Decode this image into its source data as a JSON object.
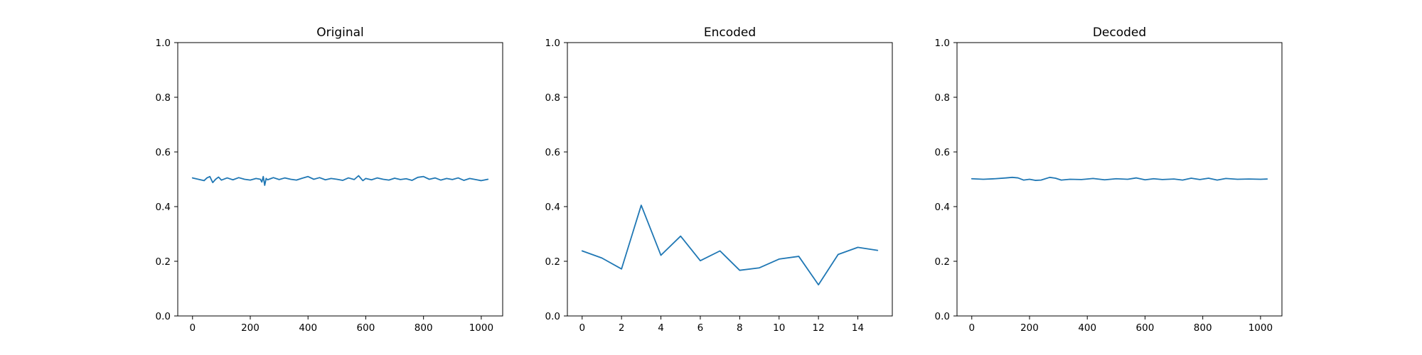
{
  "chart_data": [
    {
      "type": "line",
      "title": "Original",
      "xlabel": "",
      "ylabel": "",
      "xlim": [
        -51.15,
        1074.15
      ],
      "ylim": [
        0.0,
        1.0
      ],
      "xticks": [
        0,
        200,
        400,
        600,
        800,
        1000
      ],
      "yticks": [
        0.0,
        0.2,
        0.4,
        0.6,
        0.8,
        1.0
      ],
      "grid": false,
      "series": [
        {
          "color": "#1f77b4",
          "x": [
            0,
            20,
            40,
            50,
            60,
            70,
            80,
            90,
            100,
            120,
            140,
            160,
            180,
            200,
            220,
            235,
            240,
            245,
            250,
            255,
            260,
            280,
            300,
            320,
            340,
            360,
            380,
            400,
            420,
            440,
            460,
            480,
            500,
            520,
            540,
            560,
            575,
            590,
            600,
            620,
            640,
            660,
            680,
            700,
            720,
            740,
            760,
            780,
            800,
            820,
            840,
            860,
            880,
            900,
            920,
            940,
            960,
            980,
            1000,
            1023
          ],
          "y": [
            0.505,
            0.5,
            0.495,
            0.505,
            0.51,
            0.488,
            0.5,
            0.508,
            0.497,
            0.505,
            0.498,
            0.506,
            0.5,
            0.497,
            0.503,
            0.5,
            0.49,
            0.51,
            0.478,
            0.503,
            0.498,
            0.506,
            0.499,
            0.505,
            0.5,
            0.497,
            0.504,
            0.51,
            0.5,
            0.506,
            0.498,
            0.503,
            0.5,
            0.496,
            0.505,
            0.499,
            0.513,
            0.495,
            0.503,
            0.498,
            0.505,
            0.5,
            0.497,
            0.504,
            0.499,
            0.502,
            0.496,
            0.507,
            0.51,
            0.5,
            0.505,
            0.497,
            0.503,
            0.499,
            0.505,
            0.496,
            0.503,
            0.499,
            0.495,
            0.5
          ]
        }
      ]
    },
    {
      "type": "line",
      "title": "Encoded",
      "xlabel": "",
      "ylabel": "",
      "xlim": [
        -0.75,
        15.75
      ],
      "ylim": [
        0.0,
        1.0
      ],
      "xticks": [
        0,
        2,
        4,
        6,
        8,
        10,
        12,
        14
      ],
      "yticks": [
        0.0,
        0.2,
        0.4,
        0.6,
        0.8,
        1.0
      ],
      "grid": false,
      "series": [
        {
          "color": "#1f77b4",
          "x": [
            0,
            1,
            2,
            3,
            4,
            5,
            6,
            7,
            8,
            9,
            10,
            11,
            12,
            13,
            14,
            15
          ],
          "y": [
            0.238,
            0.212,
            0.172,
            0.405,
            0.222,
            0.292,
            0.202,
            0.238,
            0.167,
            0.176,
            0.208,
            0.218,
            0.114,
            0.225,
            0.251,
            0.24
          ]
        }
      ]
    },
    {
      "type": "line",
      "title": "Decoded",
      "xlabel": "",
      "ylabel": "",
      "xlim": [
        -51.15,
        1074.15
      ],
      "ylim": [
        0.0,
        1.0
      ],
      "xticks": [
        0,
        200,
        400,
        600,
        800,
        1000
      ],
      "yticks": [
        0.0,
        0.2,
        0.4,
        0.6,
        0.8,
        1.0
      ],
      "grid": false,
      "series": [
        {
          "color": "#1f77b4",
          "x": [
            0,
            40,
            80,
            120,
            140,
            160,
            180,
            200,
            220,
            240,
            270,
            290,
            310,
            340,
            380,
            420,
            460,
            500,
            540,
            570,
            600,
            630,
            660,
            700,
            730,
            760,
            790,
            820,
            850,
            880,
            920,
            960,
            1000,
            1023
          ],
          "y": [
            0.502,
            0.5,
            0.502,
            0.505,
            0.507,
            0.505,
            0.497,
            0.5,
            0.496,
            0.497,
            0.507,
            0.504,
            0.497,
            0.5,
            0.499,
            0.503,
            0.498,
            0.502,
            0.5,
            0.505,
            0.498,
            0.502,
            0.499,
            0.501,
            0.497,
            0.504,
            0.499,
            0.504,
            0.497,
            0.503,
            0.5,
            0.501,
            0.5,
            0.501
          ]
        }
      ]
    }
  ]
}
